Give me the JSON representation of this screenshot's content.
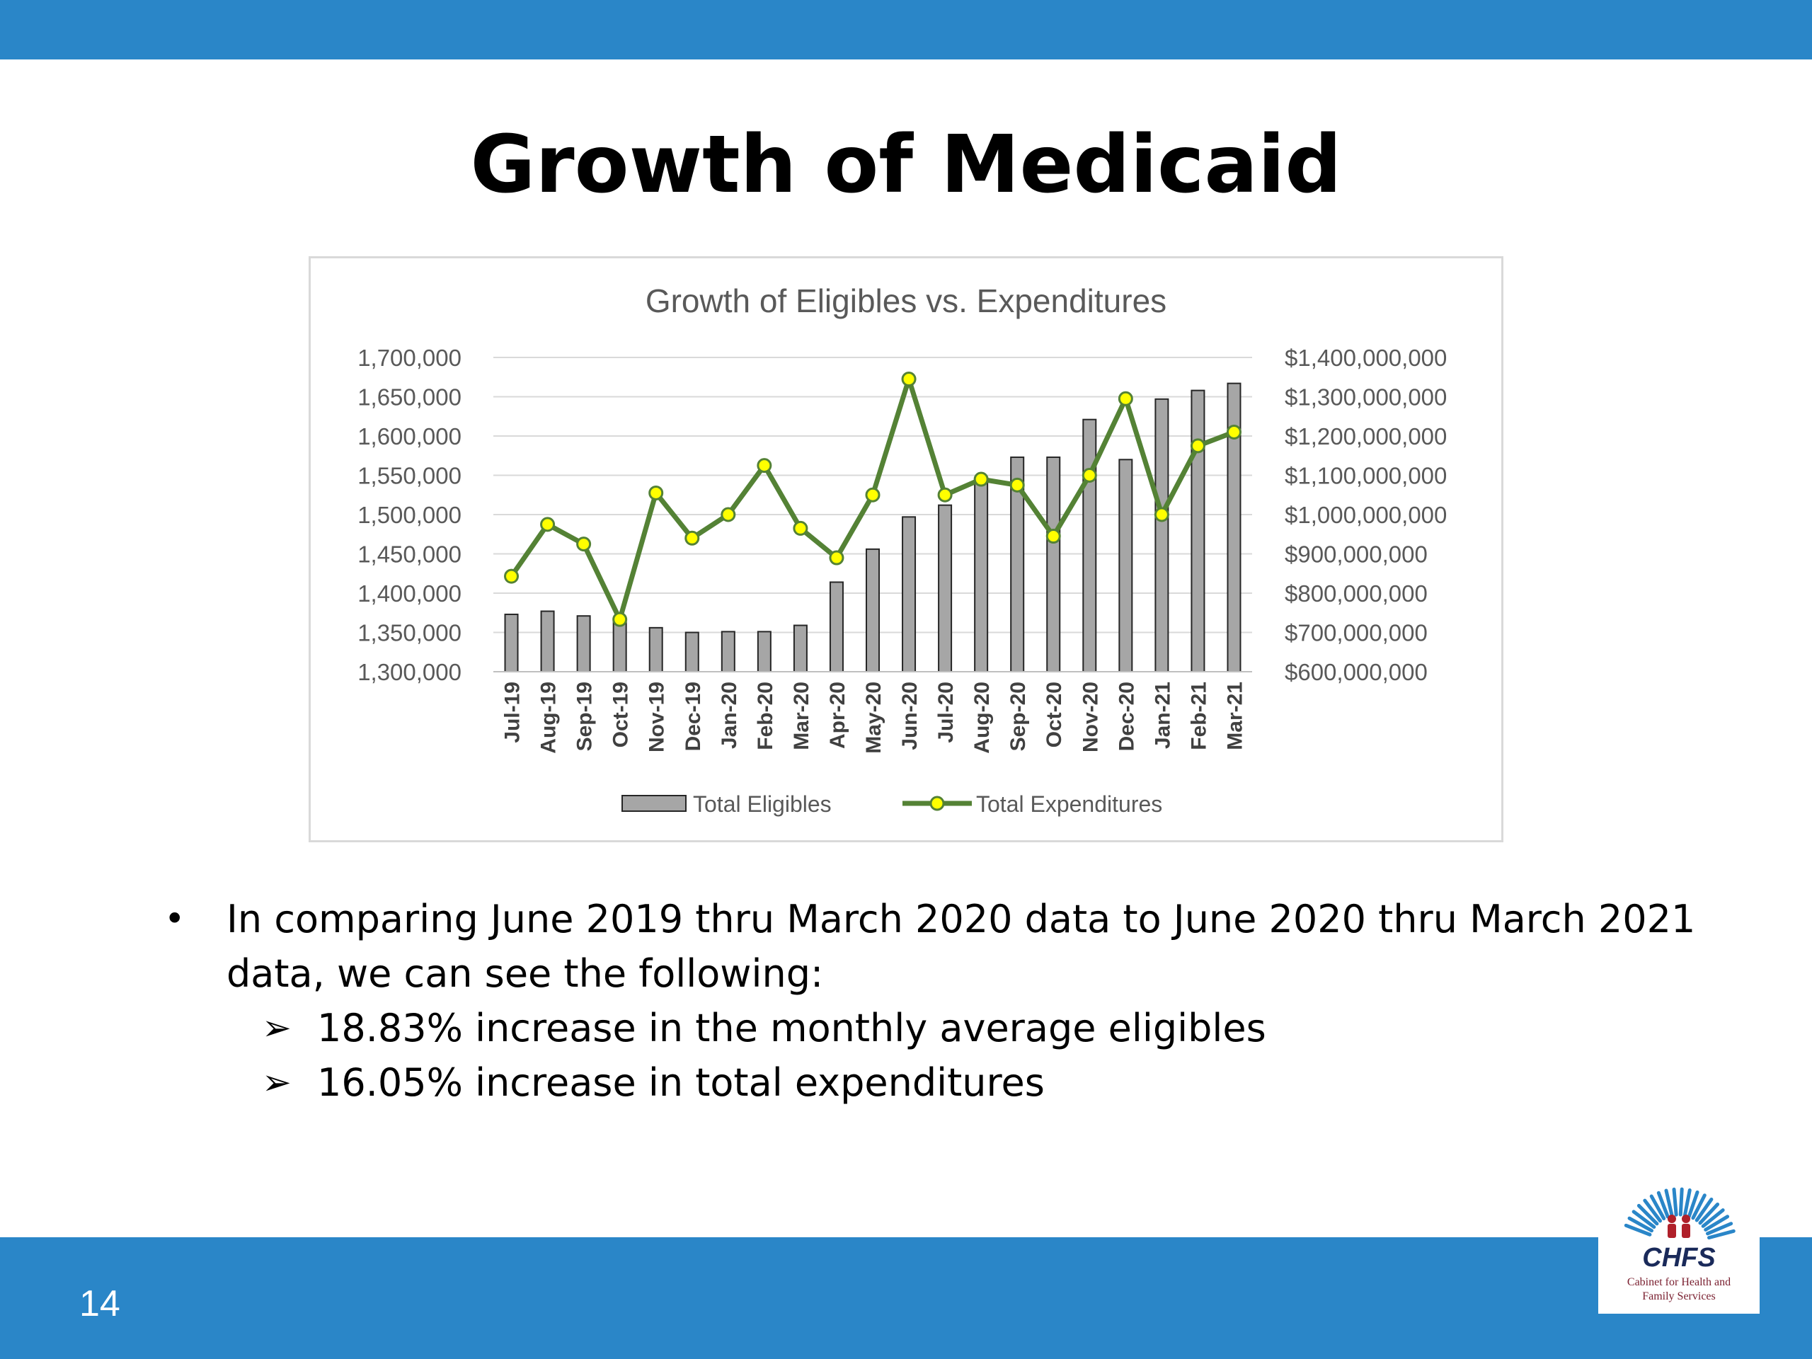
{
  "slide": {
    "title": "Growth of Medicaid",
    "page_number": "14"
  },
  "bullets": {
    "main_line1": "In comparing June 2019 thru March 2020 data to June 2020 thru March 2021",
    "main_line2": "data, we can see the following:",
    "sub": [
      "18.83% increase in the monthly average eligibles",
      "16.05% increase in total expenditures"
    ]
  },
  "logo": {
    "name": "CHFS",
    "subtitle_line1": "Cabinet for Health and",
    "subtitle_line2": "Family Services"
  },
  "colors": {
    "bar_fill": "#a6a6a6",
    "bar_stroke": "#262626",
    "line": "#548235",
    "marker_fill": "#ffff00",
    "grid": "#d9d9d9",
    "text": "#595959",
    "band": "#2a86c8"
  },
  "chart_data": {
    "type": "bar",
    "title": "Growth of Eligibles vs. Expenditures",
    "categories": [
      "Jul-19",
      "Aug-19",
      "Sep-19",
      "Oct-19",
      "Nov-19",
      "Dec-19",
      "Jan-20",
      "Feb-20",
      "Mar-20",
      "Apr-20",
      "May-20",
      "Jun-20",
      "Jul-20",
      "Aug-20",
      "Sep-20",
      "Oct-20",
      "Nov-20",
      "Dec-20",
      "Jan-21",
      "Feb-21",
      "Mar-21"
    ],
    "y_left": {
      "min": 1300000,
      "max": 1700000,
      "ticks": [
        "1,300,000",
        "1,350,000",
        "1,400,000",
        "1,450,000",
        "1,500,000",
        "1,550,000",
        "1,600,000",
        "1,650,000",
        "1,700,000"
      ]
    },
    "y_right": {
      "min": 600000000,
      "max": 1400000000,
      "ticks": [
        "$600,000,000",
        "$700,000,000",
        "$800,000,000",
        "$900,000,000",
        "$1,000,000,000",
        "$1,100,000,000",
        "$1,200,000,000",
        "$1,300,000,000",
        "$1,400,000,000"
      ]
    },
    "grid": true,
    "legend_position": "bottom",
    "series": [
      {
        "name": "Total Eligibles",
        "type": "bar",
        "axis": "left",
        "values": [
          1373000,
          1377000,
          1371000,
          1365000,
          1356000,
          1350000,
          1351000,
          1351000,
          1359000,
          1414000,
          1456000,
          1497000,
          1512000,
          1545000,
          1573000,
          1573000,
          1621000,
          1570000,
          1647000,
          1658000,
          1667000
        ]
      },
      {
        "name": "Total Expenditures",
        "type": "line",
        "axis": "right",
        "values": [
          843000000,
          975000000,
          925000000,
          733000000,
          1055000000,
          940000000,
          1000000000,
          1125000000,
          965000000,
          890000000,
          1050000000,
          1345000000,
          1050000000,
          1090000000,
          1075000000,
          945000000,
          1100000000,
          1295000000,
          1000000000,
          1175000000,
          1210000000
        ]
      }
    ]
  }
}
